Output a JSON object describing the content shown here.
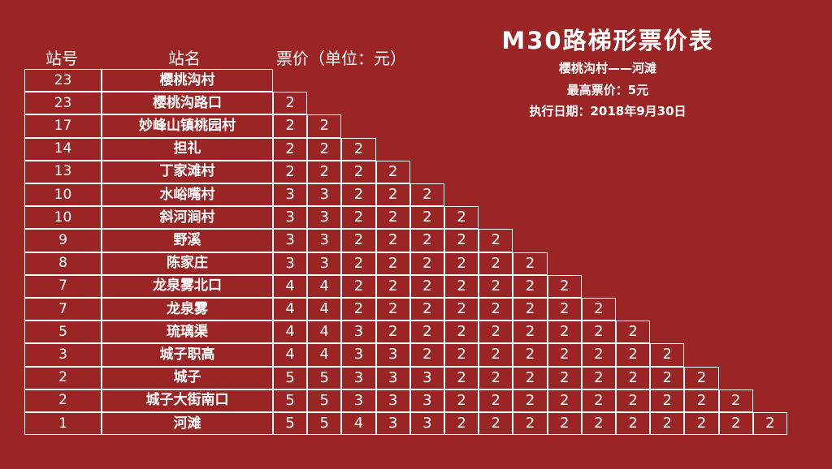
{
  "header": {
    "code_label": "站号",
    "name_label": "站名",
    "fare_label": "票价（单位：元）"
  },
  "title": "M30路梯形票价表",
  "route": "樱桃沟村——河滩",
  "max_fare": "最高票价：5元",
  "effective_date": "执行日期：2018年9月30日",
  "stations": [
    {
      "code": "23",
      "name": "樱桃沟村",
      "fares": []
    },
    {
      "code": "23",
      "name": "樱桃沟路口",
      "fares": [
        "2"
      ]
    },
    {
      "code": "17",
      "name": "妙峰山镇桃园村",
      "fares": [
        "2",
        "2"
      ]
    },
    {
      "code": "14",
      "name": "担礼",
      "fares": [
        "2",
        "2",
        "2"
      ]
    },
    {
      "code": "13",
      "name": "丁家滩村",
      "fares": [
        "2",
        "2",
        "2",
        "2"
      ]
    },
    {
      "code": "10",
      "name": "水峪嘴村",
      "fares": [
        "3",
        "3",
        "2",
        "2",
        "2"
      ]
    },
    {
      "code": "10",
      "name": "斜河涧村",
      "fares": [
        "3",
        "3",
        "2",
        "2",
        "2",
        "2"
      ]
    },
    {
      "code": "9",
      "name": "野溪",
      "fares": [
        "3",
        "3",
        "2",
        "2",
        "2",
        "2",
        "2"
      ]
    },
    {
      "code": "8",
      "name": "陈家庄",
      "fares": [
        "3",
        "3",
        "2",
        "2",
        "2",
        "2",
        "2",
        "2"
      ]
    },
    {
      "code": "7",
      "name": "龙泉雾北口",
      "fares": [
        "4",
        "4",
        "2",
        "2",
        "2",
        "2",
        "2",
        "2",
        "2"
      ]
    },
    {
      "code": "7",
      "name": "龙泉雾",
      "fares": [
        "4",
        "4",
        "2",
        "2",
        "2",
        "2",
        "2",
        "2",
        "2",
        "2"
      ]
    },
    {
      "code": "5",
      "name": "琉璃渠",
      "fares": [
        "4",
        "4",
        "3",
        "2",
        "2",
        "2",
        "2",
        "2",
        "2",
        "2",
        "2"
      ]
    },
    {
      "code": "3",
      "name": "城子职高",
      "fares": [
        "4",
        "4",
        "3",
        "3",
        "2",
        "2",
        "2",
        "2",
        "2",
        "2",
        "2",
        "2"
      ]
    },
    {
      "code": "2",
      "name": "城子",
      "fares": [
        "5",
        "5",
        "3",
        "3",
        "3",
        "2",
        "2",
        "2",
        "2",
        "2",
        "2",
        "2",
        "2"
      ]
    },
    {
      "code": "2",
      "name": "城子大街南口",
      "fares": [
        "5",
        "5",
        "3",
        "3",
        "3",
        "2",
        "2",
        "2",
        "2",
        "2",
        "2",
        "2",
        "2",
        "2"
      ]
    },
    {
      "code": "1",
      "name": "河滩",
      "fares": [
        "5",
        "5",
        "4",
        "3",
        "3",
        "2",
        "2",
        "2",
        "2",
        "2",
        "2",
        "2",
        "2",
        "2",
        "2"
      ]
    }
  ],
  "colors": {
    "background": "#9b2424",
    "text": "#ffffff",
    "grid": "#ffffff"
  }
}
